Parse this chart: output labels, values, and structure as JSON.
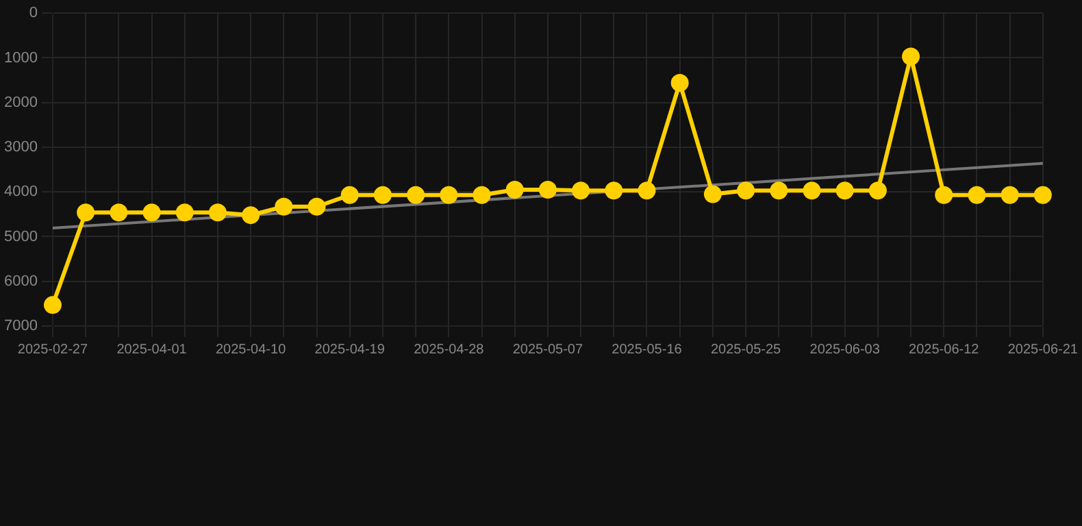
{
  "chart_data": {
    "type": "line",
    "categories": [
      "2025-02-27",
      null,
      null,
      "2025-04-01",
      null,
      null,
      "2025-04-10",
      null,
      null,
      "2025-04-19",
      null,
      null,
      "2025-04-28",
      null,
      null,
      "2025-05-07",
      null,
      null,
      "2025-05-16",
      null,
      null,
      "2025-05-25",
      null,
      null,
      "2025-06-03",
      null,
      null,
      "2025-06-12",
      null,
      null,
      "2025-06-21"
    ],
    "series": [
      {
        "color": "#ffd000",
        "marker": "circle",
        "values": [
          6530,
          4460,
          4460,
          4460,
          4460,
          4460,
          4520,
          4330,
          4330,
          4070,
          4070,
          4070,
          4070,
          4070,
          3950,
          3950,
          3970,
          3970,
          3970,
          1560,
          4050,
          3970,
          3970,
          3970,
          3970,
          3970,
          970,
          4070,
          4070,
          4070,
          4070
        ]
      },
      {
        "color": "#777777",
        "marker": "none",
        "values": [
          4810,
          null,
          null,
          null,
          null,
          null,
          null,
          null,
          null,
          null,
          null,
          null,
          null,
          null,
          null,
          null,
          null,
          null,
          null,
          null,
          null,
          null,
          null,
          null,
          null,
          null,
          null,
          null,
          null,
          null,
          3360
        ]
      }
    ],
    "ylim": [
      7000,
      0
    ],
    "yticks": [
      0,
      1000,
      2000,
      3000,
      4000,
      5000,
      6000,
      7000
    ],
    "grid": true,
    "legend": false
  }
}
